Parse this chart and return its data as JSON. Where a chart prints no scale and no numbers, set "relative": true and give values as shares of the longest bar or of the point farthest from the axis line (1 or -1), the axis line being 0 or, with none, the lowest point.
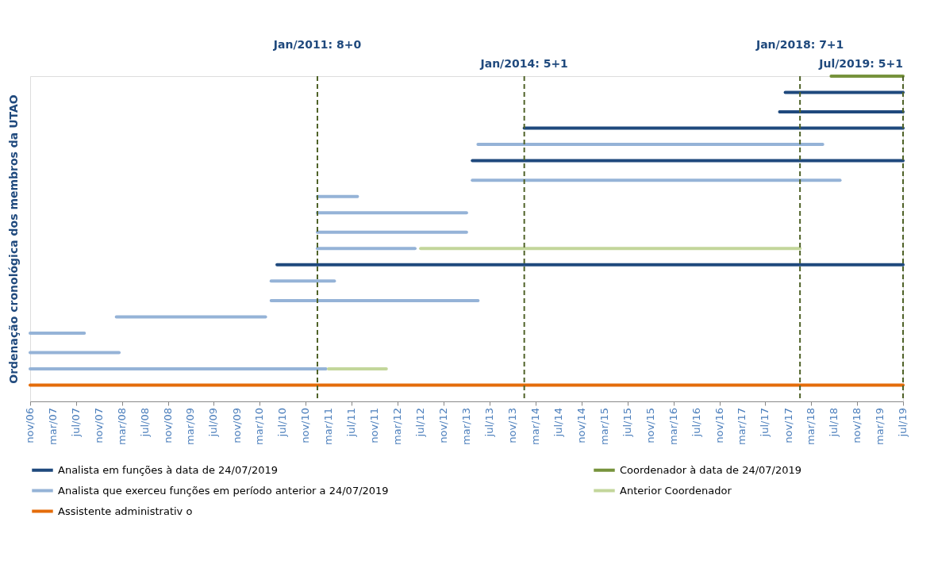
{
  "chart_data": {
    "type": "line",
    "relative": true,
    "ylabel": "Ordenação cronológica dos membros da UTAO",
    "xlim": [
      "2006-11",
      "2019-07"
    ],
    "xticks": [
      {
        "value": "2006-11",
        "label": "nov/06"
      },
      {
        "value": "2007-03",
        "label": "mar/07"
      },
      {
        "value": "2007-07",
        "label": "jul/07"
      },
      {
        "value": "2007-11",
        "label": "nov/07"
      },
      {
        "value": "2008-03",
        "label": "mar/08"
      },
      {
        "value": "2008-07",
        "label": "jul/08"
      },
      {
        "value": "2008-11",
        "label": "nov/08"
      },
      {
        "value": "2009-03",
        "label": "mar/09"
      },
      {
        "value": "2009-07",
        "label": "jul/09"
      },
      {
        "value": "2009-11",
        "label": "nov/09"
      },
      {
        "value": "2010-03",
        "label": "mar/10"
      },
      {
        "value": "2010-07",
        "label": "jul/10"
      },
      {
        "value": "2010-11",
        "label": "nov/10"
      },
      {
        "value": "2011-03",
        "label": "mar/11"
      },
      {
        "value": "2011-07",
        "label": "jul/11"
      },
      {
        "value": "2011-11",
        "label": "nov/11"
      },
      {
        "value": "2012-03",
        "label": "mar/12"
      },
      {
        "value": "2012-07",
        "label": "jul/12"
      },
      {
        "value": "2012-11",
        "label": "nov/12"
      },
      {
        "value": "2013-03",
        "label": "mar/13"
      },
      {
        "value": "2013-07",
        "label": "jul/13"
      },
      {
        "value": "2013-11",
        "label": "nov/13"
      },
      {
        "value": "2014-03",
        "label": "mar/14"
      },
      {
        "value": "2014-07",
        "label": "jul/14"
      },
      {
        "value": "2014-11",
        "label": "nov/14"
      },
      {
        "value": "2015-03",
        "label": "mar/15"
      },
      {
        "value": "2015-07",
        "label": "jul/15"
      },
      {
        "value": "2015-11",
        "label": "nov/15"
      },
      {
        "value": "2016-03",
        "label": "mar/16"
      },
      {
        "value": "2016-07",
        "label": "jul/16"
      },
      {
        "value": "2016-11",
        "label": "nov/16"
      },
      {
        "value": "2017-03",
        "label": "mar/17"
      },
      {
        "value": "2017-07",
        "label": "jul/17"
      },
      {
        "value": "2017-11",
        "label": "nov/17"
      },
      {
        "value": "2018-03",
        "label": "mar/18"
      },
      {
        "value": "2018-07",
        "label": "jul/18"
      },
      {
        "value": "2018-11",
        "label": "nov/18"
      },
      {
        "value": "2019-03",
        "label": "mar/19"
      },
      {
        "value": "2019-07",
        "label": "jul/19"
      }
    ],
    "grid": false,
    "legend": "bottom",
    "line_style": "solid",
    "series": [
      {
        "name": "Analista em funções à data de 24/07/2019",
        "color": "#1f497d",
        "x": [
          "2017-10-15",
          "2019-07",
          null,
          "2017-09-15",
          "2019-07",
          null,
          "2014-01",
          "2019-07",
          null,
          "2013-04",
          "2019-07",
          null,
          "2010-06",
          "2019-07"
        ],
        "values": [
          0.95,
          0.95,
          null,
          0.89,
          0.89,
          null,
          0.84,
          0.84,
          null,
          0.74,
          0.74,
          null,
          0.42,
          0.42
        ]
      },
      {
        "name": "Coordenador à data de 24/07/2019",
        "color": "#77933c",
        "x": [
          "2018-06-15",
          "2019-07"
        ],
        "values": [
          1,
          1
        ]
      },
      {
        "name": "Analista que exerceu funções em período anterior a 24/07/2019",
        "color": "#95b3d7",
        "x": [
          "2013-05",
          "2018-05",
          null,
          "2013-04",
          "2018-08",
          null,
          "2011-01",
          "2011-08",
          null,
          "2011-01",
          "2013-03",
          null,
          "2011-01",
          "2012-06",
          null,
          "2010-05",
          "2011-04",
          null,
          "2010-05",
          "2013-05",
          null,
          "2008-02",
          "2010-04",
          null,
          "2006-11",
          "2007-08-15",
          null,
          "2006-11",
          "2008-02-15",
          null,
          "2006-11",
          "2011-02-15"
        ],
        "values": [
          0.79,
          0.79,
          null,
          0.68,
          0.68,
          null,
          0.63,
          0.63,
          null,
          0.58,
          0.58,
          null,
          0.47,
          0.47,
          null,
          0.37,
          0.37,
          null,
          0.31,
          0.31,
          null,
          0.26,
          0.26,
          null,
          0.21,
          0.21,
          null,
          0.15,
          0.15,
          null,
          0.1,
          0.1
        ]
      },
      {
        "color": "#95b3d7",
        "x": [
          "2011-01",
          "2013-03"
        ],
        "values": [
          0.52,
          0.52
        ]
      },
      {
        "name": "Anterior Coordenador",
        "color": "#c3d69b",
        "x": [
          "2012-07",
          "2018-01",
          null,
          "2011-03",
          "2012-01"
        ],
        "values": [
          0.47,
          0.47,
          null,
          0.1,
          0.1
        ]
      },
      {
        "name": "Assistente administrativ o",
        "color": "#e46c0a",
        "x": [
          "2006-11",
          "2019-07"
        ],
        "values": [
          0.05,
          0.05
        ]
      }
    ],
    "ref_lines": [
      {
        "axis": "x",
        "value": "2011-01",
        "label": "Jan/2011: 8+0",
        "color": "#4f6228",
        "line_style": "dashed"
      },
      {
        "axis": "x",
        "value": "2014-01",
        "label": "Jan/2014: 5+1",
        "color": "#4f6228",
        "line_style": "dashed"
      },
      {
        "axis": "x",
        "value": "2018-01",
        "label": "Jan/2018: 7+1",
        "color": "#4f6228",
        "line_style": "dashed"
      },
      {
        "axis": "x",
        "value": "2019-07",
        "label": "Jul/2019: 5+1",
        "color": "#4f6228",
        "line_style": "dashed"
      }
    ]
  }
}
